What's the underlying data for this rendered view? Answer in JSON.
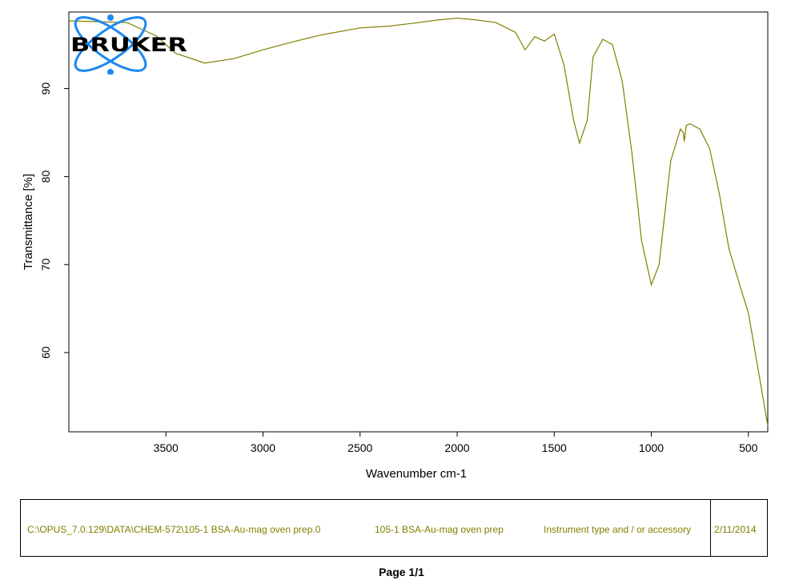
{
  "logo": {
    "text": "BRUKER",
    "colors": {
      "orbit": "#1e88f0",
      "text": "#000000"
    }
  },
  "chart_data": {
    "type": "line",
    "xlabel": "Wavenumber cm-1",
    "ylabel": "Transmittance [%]",
    "xlim": [
      4000,
      400
    ],
    "ylim": [
      51,
      98.7
    ],
    "x_reversed": true,
    "xticks": [
      3500,
      3000,
      2500,
      2000,
      1500,
      1000,
      500
    ],
    "yticks": [
      60,
      70,
      80,
      90
    ],
    "grid": false,
    "color": "#808000",
    "series": [
      {
        "x": [
          4000,
          3850,
          3700,
          3550,
          3450,
          3300,
          3150,
          3000,
          2850,
          2700,
          2500,
          2350,
          2200,
          2100,
          2000,
          1900,
          1800,
          1700,
          1650,
          1600,
          1550,
          1500,
          1450,
          1400,
          1370,
          1330,
          1300,
          1250,
          1200,
          1150,
          1100,
          1050,
          1000,
          960,
          900,
          850,
          835,
          830,
          820,
          800,
          750,
          700,
          650,
          600,
          550,
          500,
          450,
          400
        ],
        "y": [
          97.7,
          97.6,
          97.5,
          96,
          94,
          92.9,
          93.4,
          94.4,
          95.3,
          96.1,
          96.9,
          97.1,
          97.5,
          97.8,
          98,
          97.8,
          97.5,
          96.4,
          94.4,
          95.9,
          95.4,
          96.2,
          92.7,
          86.4,
          83.8,
          86.4,
          93.6,
          95.6,
          95,
          90.9,
          82.7,
          72.7,
          67.7,
          70,
          81.8,
          85.4,
          85,
          84,
          85.8,
          86,
          85.4,
          83.2,
          78.1,
          71.8,
          68.1,
          64.5,
          58.1,
          51.7
        ]
      }
    ]
  },
  "footer": {
    "file_path": "C:\\OPUS_7.0.129\\DATA\\CHEM-572\\105-1 BSA-Au-mag oven prep.0",
    "sample_name": "105-1 BSA-Au-mag oven prep",
    "instrument": "Instrument type and / or accessory",
    "date": "2/11/2014"
  },
  "page_label": "Page 1/1"
}
